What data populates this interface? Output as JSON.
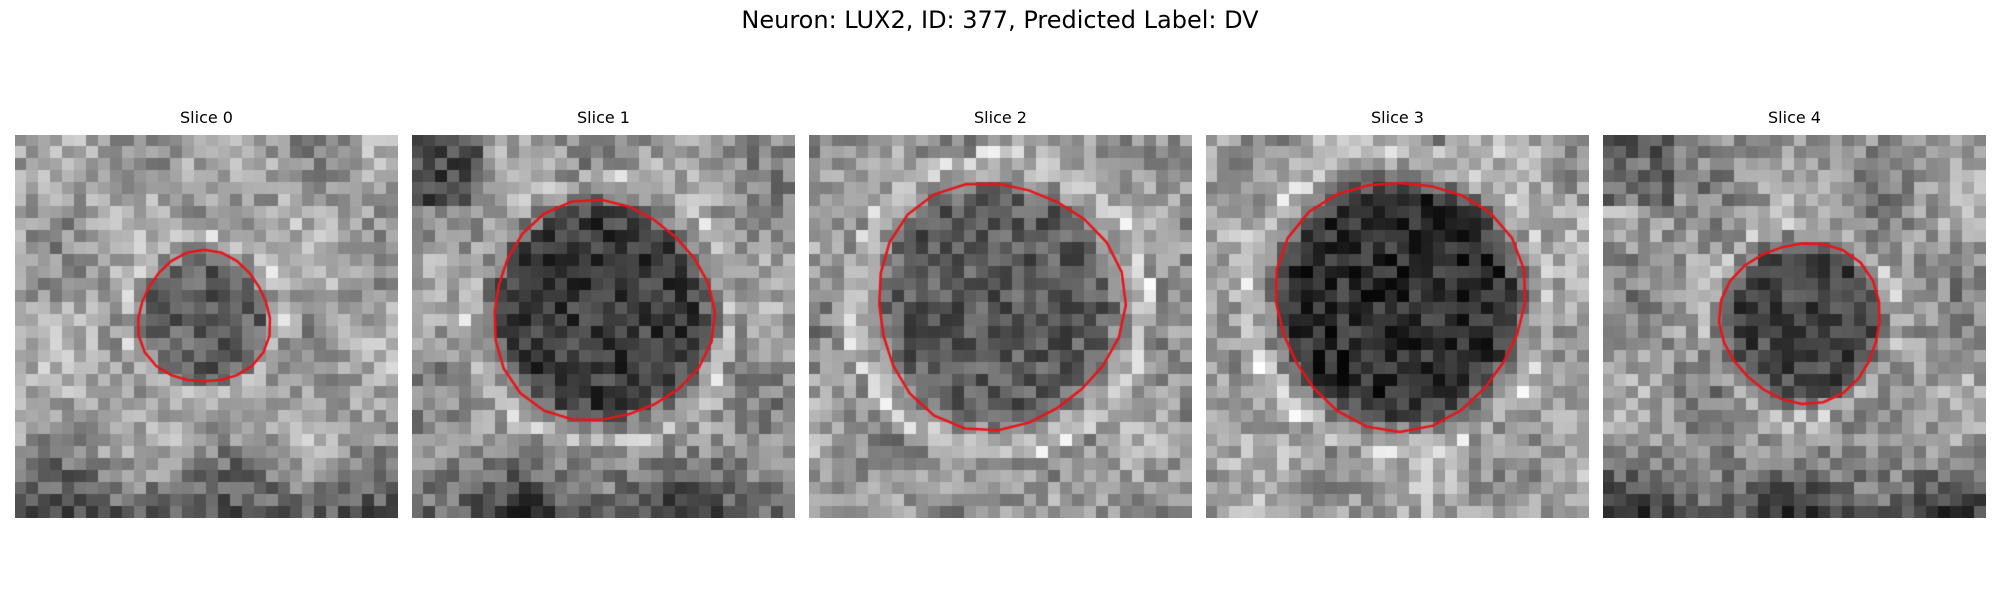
{
  "figure": {
    "title": "Neuron: LUX2, ID: 377, Predicted Label: DV"
  },
  "colors": {
    "contour": "#e8141a",
    "background": "#ffffff"
  },
  "panels": [
    {
      "title": "Slice 0",
      "content": "grayscale microscopy slice with red polygon outline around a dark cell body"
    },
    {
      "title": "Slice 1",
      "content": "grayscale microscopy slice with red polygon outline around a dark cell body"
    },
    {
      "title": "Slice 2",
      "content": "grayscale microscopy slice with red polygon outline around a dark cell body"
    },
    {
      "title": "Slice 3",
      "content": "grayscale microscopy slice with red polygon outline around a dark cell body"
    },
    {
      "title": "Slice 4",
      "content": "grayscale microscopy slice with red polygon outline around a dark cell body"
    }
  ]
}
